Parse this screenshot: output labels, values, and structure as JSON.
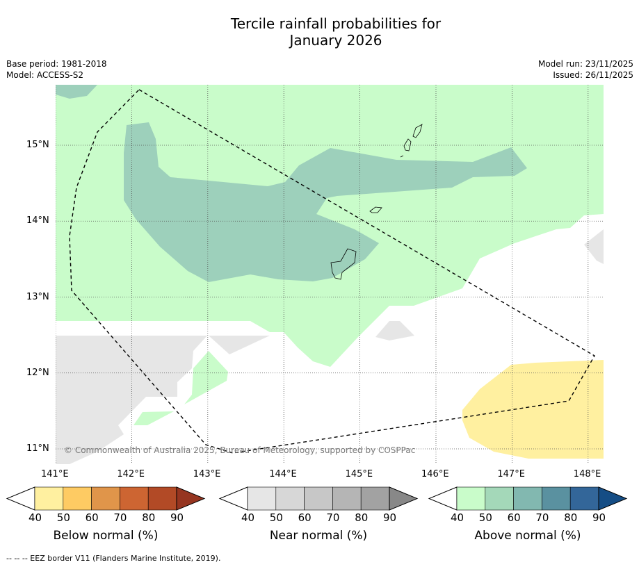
{
  "title_line1": "Tercile rainfall probabilities for",
  "title_line2": "January 2026",
  "base_period": "Base period: 1981-2018",
  "model": "Model: ACCESS-S2",
  "model_run": "Model run: 23/11/2025",
  "issued": "Issued: 26/11/2025",
  "copyright": "© Commonwealth of Australia 2025, Bureau of Meteorology, supported by COSPPac",
  "lat_labels": [
    "15°N",
    "14°N",
    "13°N",
    "12°N",
    "11°N"
  ],
  "lon_labels": [
    "141°E",
    "142°E",
    "143°E",
    "144°E",
    "145°E",
    "146°E",
    "147°E",
    "148°E"
  ],
  "colorbars": [
    {
      "label": "Below normal (%)",
      "ticks": [
        "40",
        "50",
        "60",
        "70",
        "80",
        "90"
      ],
      "colors": [
        "#fff0a0",
        "#fecb63",
        "#e0954a",
        "#cd6532",
        "#b24a26",
        "#963520"
      ]
    },
    {
      "label": "Near normal (%)",
      "ticks": [
        "40",
        "50",
        "60",
        "70",
        "80",
        "90"
      ],
      "colors": [
        "#e6e6e6",
        "#d7d7d7",
        "#c7c7c7",
        "#b5b5b5",
        "#a2a2a2",
        "#888888"
      ]
    },
    {
      "label": "Above normal (%)",
      "ticks": [
        "40",
        "50",
        "60",
        "70",
        "80",
        "90"
      ],
      "colors": [
        "#c9fcca",
        "#a4d8b9",
        "#82b8b0",
        "#5a91a0",
        "#336699",
        "#154d85"
      ]
    }
  ],
  "legend_note": "--  --  -- EEZ border V11 (Flanders Marine Institute, 2019)."
}
